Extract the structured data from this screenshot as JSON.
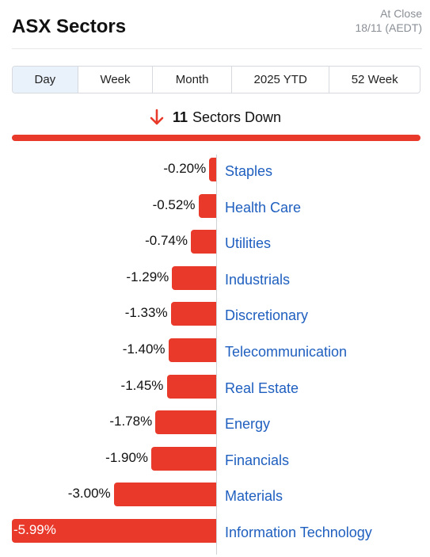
{
  "header": {
    "title": "ASX Sectors",
    "status_line1": "At Close",
    "status_line2": "18/11 (AEDT)"
  },
  "tabs": [
    {
      "label": "Day",
      "active": true
    },
    {
      "label": "Week",
      "active": false
    },
    {
      "label": "Month",
      "active": false
    },
    {
      "label": "2025 YTD",
      "active": false
    },
    {
      "label": "52 Week",
      "active": false
    }
  ],
  "summary": {
    "count": "11",
    "text": "Sectors Down",
    "icon": "arrow-down-icon"
  },
  "colors": {
    "down": "#e8392a",
    "link": "#1f5fbf",
    "active_tab": "#e9f1fb"
  },
  "chart_data": {
    "type": "bar",
    "orientation": "horizontal",
    "categories": [
      "Staples",
      "Health Care",
      "Utilities",
      "Industrials",
      "Discretionary",
      "Telecommunication",
      "Real Estate",
      "Energy",
      "Financials",
      "Materials",
      "Information Technology"
    ],
    "values": [
      -0.2,
      -0.52,
      -0.74,
      -1.29,
      -1.33,
      -1.4,
      -1.45,
      -1.78,
      -1.9,
      -3.0,
      -5.99
    ],
    "labels": [
      "-0.20%",
      "-0.52%",
      "-0.74%",
      "-1.29%",
      "-1.33%",
      "-1.40%",
      "-1.45%",
      "-1.78%",
      "-1.90%",
      "-3.00%",
      "-5.99%"
    ],
    "xlim": [
      -5.99,
      0
    ]
  }
}
